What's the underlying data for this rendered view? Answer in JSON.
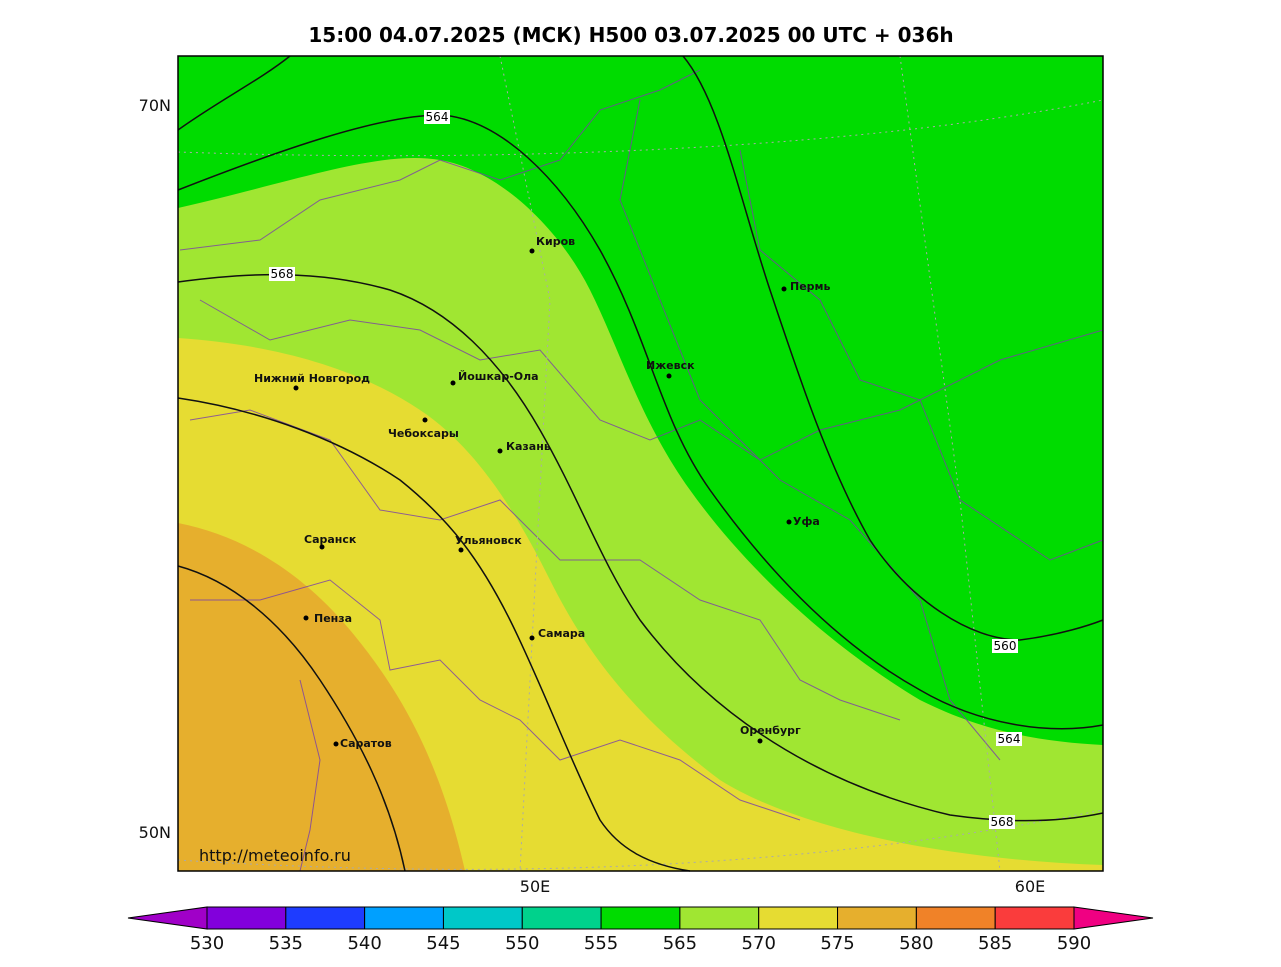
{
  "title": "15:00 04.07.2025 (МСК) H500  03.07.2025 00 UTC + 036h",
  "lat_labels": [
    "70N",
    "50N"
  ],
  "lon_labels": [
    "50E",
    "60E"
  ],
  "cities": [
    "Киров",
    "Пермь",
    "Ижевск",
    "Нижний Новгород",
    "Йошкар-Ола",
    "Чебоксары",
    "Казань",
    "Уфа",
    "Саранск",
    "Ульяновск",
    "Пенза",
    "Самара",
    "Оренбург",
    "Саратов"
  ],
  "contour_labels": [
    "564",
    "568",
    "560",
    "564",
    "568"
  ],
  "credit": "http://meteoinfo.ru",
  "colorbar": {
    "labels": [
      "530",
      "535",
      "540",
      "545",
      "550",
      "555",
      "565",
      "570",
      "575",
      "580",
      "585",
      "590"
    ],
    "colors": [
      "#a000c8",
      "#8200dc",
      "#1e3cff",
      "#00a0ff",
      "#00c8c8",
      "#00d28c",
      "#00dc00",
      "#a0e632",
      "#e6dc32",
      "#e6af2d",
      "#f08228",
      "#fa3c3c",
      "#f00082"
    ]
  }
}
